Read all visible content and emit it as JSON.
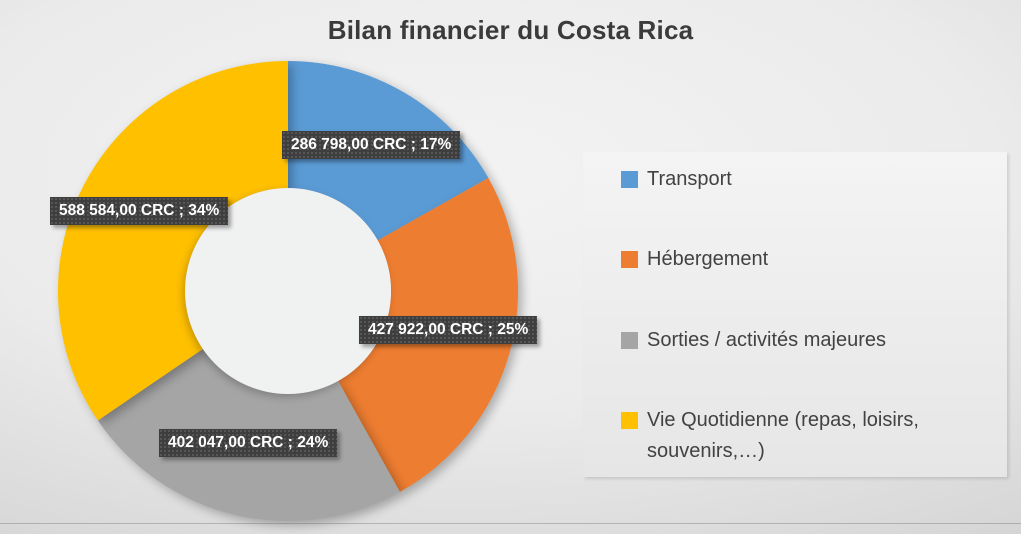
{
  "chart_data": {
    "type": "pie",
    "subtype": "doughnut",
    "title": "Bilan financier du Costa Rica",
    "currency": "CRC",
    "legend_position": "right",
    "hole_ratio": 0.45,
    "categories": [
      "Transport",
      "Hébergement",
      "Sorties / activités majeures",
      "Vie Quotidienne (repas, loisirs, souvenirs,…)"
    ],
    "values": [
      286798.0,
      427922.0,
      402047.0,
      588584.0
    ],
    "percentages": [
      17,
      25,
      24,
      34
    ],
    "slices": [
      {
        "id": "transport",
        "name": "Transport",
        "value": 286798.0,
        "percent": 17,
        "color": "#5B9BD5",
        "data_label": "286 798,00 CRC ; 17%"
      },
      {
        "id": "hebergement",
        "name": "Hébergement",
        "value": 427922.0,
        "percent": 25,
        "color": "#ED7D31",
        "data_label": "427 922,00 CRC ; 25%"
      },
      {
        "id": "sorties",
        "name": "Sorties / activités majeures",
        "value": 402047.0,
        "percent": 24,
        "color": "#A5A5A5",
        "data_label": "402 047,00 CRC ; 24%"
      },
      {
        "id": "vie-quotidienne",
        "name": "Vie Quotidienne (repas, loisirs, souvenirs,…)",
        "value": 588584.0,
        "percent": 34,
        "color": "#FFC000",
        "data_label": "588 584,00 CRC ; 34%"
      }
    ],
    "hole_color": "#f0f1f1"
  }
}
